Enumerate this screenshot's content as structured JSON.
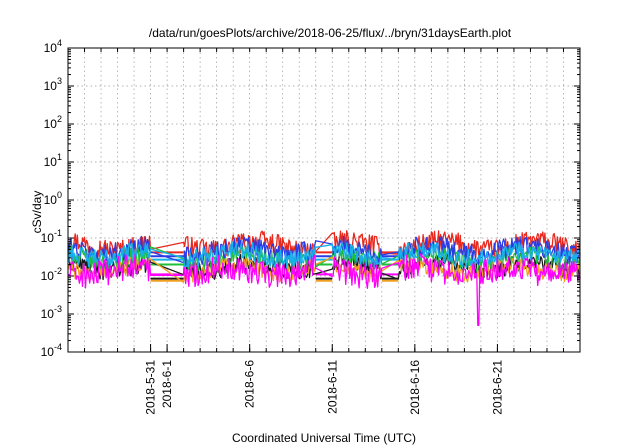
{
  "chart_data": {
    "type": "line",
    "title": "/data/run/goesPlots/archive/2018-06-25/flux/../bryn/31daysEarth.plot",
    "xlabel": "Coordinated Universal Time (UTC)",
    "ylabel": "cSv/day",
    "y_scale": "log",
    "ylim": [
      0.0001,
      10000
    ],
    "xlim": [
      "2018-05-26",
      "2018-06-26"
    ],
    "grid": true,
    "y_ticks": [
      {
        "value": 0.0001,
        "base": "10",
        "exp": "-4"
      },
      {
        "value": 0.001,
        "base": "10",
        "exp": "-3"
      },
      {
        "value": 0.01,
        "base": "10",
        "exp": "-2"
      },
      {
        "value": 0.1,
        "base": "10",
        "exp": "-1"
      },
      {
        "value": 1,
        "base": "10",
        "exp": "0"
      },
      {
        "value": 10,
        "base": "10",
        "exp": "1"
      },
      {
        "value": 100,
        "base": "10",
        "exp": "2"
      },
      {
        "value": 1000,
        "base": "10",
        "exp": "3"
      },
      {
        "value": 10000,
        "base": "10",
        "exp": "4"
      }
    ],
    "x_ticks": [
      {
        "date": "2018-05-31",
        "label": "2018-5-31"
      },
      {
        "date": "2018-06-01",
        "label": "2018-6-1"
      },
      {
        "date": "2018-06-06",
        "label": "2018-6-6"
      },
      {
        "date": "2018-06-11",
        "label": "2018-6-11"
      },
      {
        "date": "2018-06-16",
        "label": "2018-6-16"
      },
      {
        "date": "2018-06-21",
        "label": "2018-6-21"
      }
    ],
    "data_gaps": [
      {
        "from": "2018-05-31",
        "to": "2018-06-02"
      },
      {
        "from": "2018-06-10",
        "to": "2018-06-11"
      },
      {
        "from": "2018-06-14",
        "to": "2018-06-15"
      }
    ],
    "series": [
      {
        "color": "#e8281e",
        "base": 0.06,
        "amp": 0.55,
        "gap_value": 0.042
      },
      {
        "color": "#1a1a1a",
        "base": 0.017,
        "amp": 0.5,
        "gap_value": 0.0085
      },
      {
        "color": "#1fbf3a",
        "base": 0.028,
        "amp": 0.5,
        "gap_value": 0.02
      },
      {
        "color": "#2a3ce6",
        "base": 0.045,
        "amp": 0.55,
        "gap_value": 0.033
      },
      {
        "color": "#18b0e8",
        "base": 0.035,
        "amp": 0.5,
        "gap_value": 0.027
      },
      {
        "color": "#f0a020",
        "base": 0.014,
        "amp": 0.45,
        "gap_value": 0.0075
      },
      {
        "color": "#ff00ff",
        "base": 0.0125,
        "amp": 0.7,
        "gap_value": 0.011,
        "dips": [
          {
            "date": "2018-06-19T20:00",
            "value": 0.0005
          }
        ]
      }
    ]
  }
}
